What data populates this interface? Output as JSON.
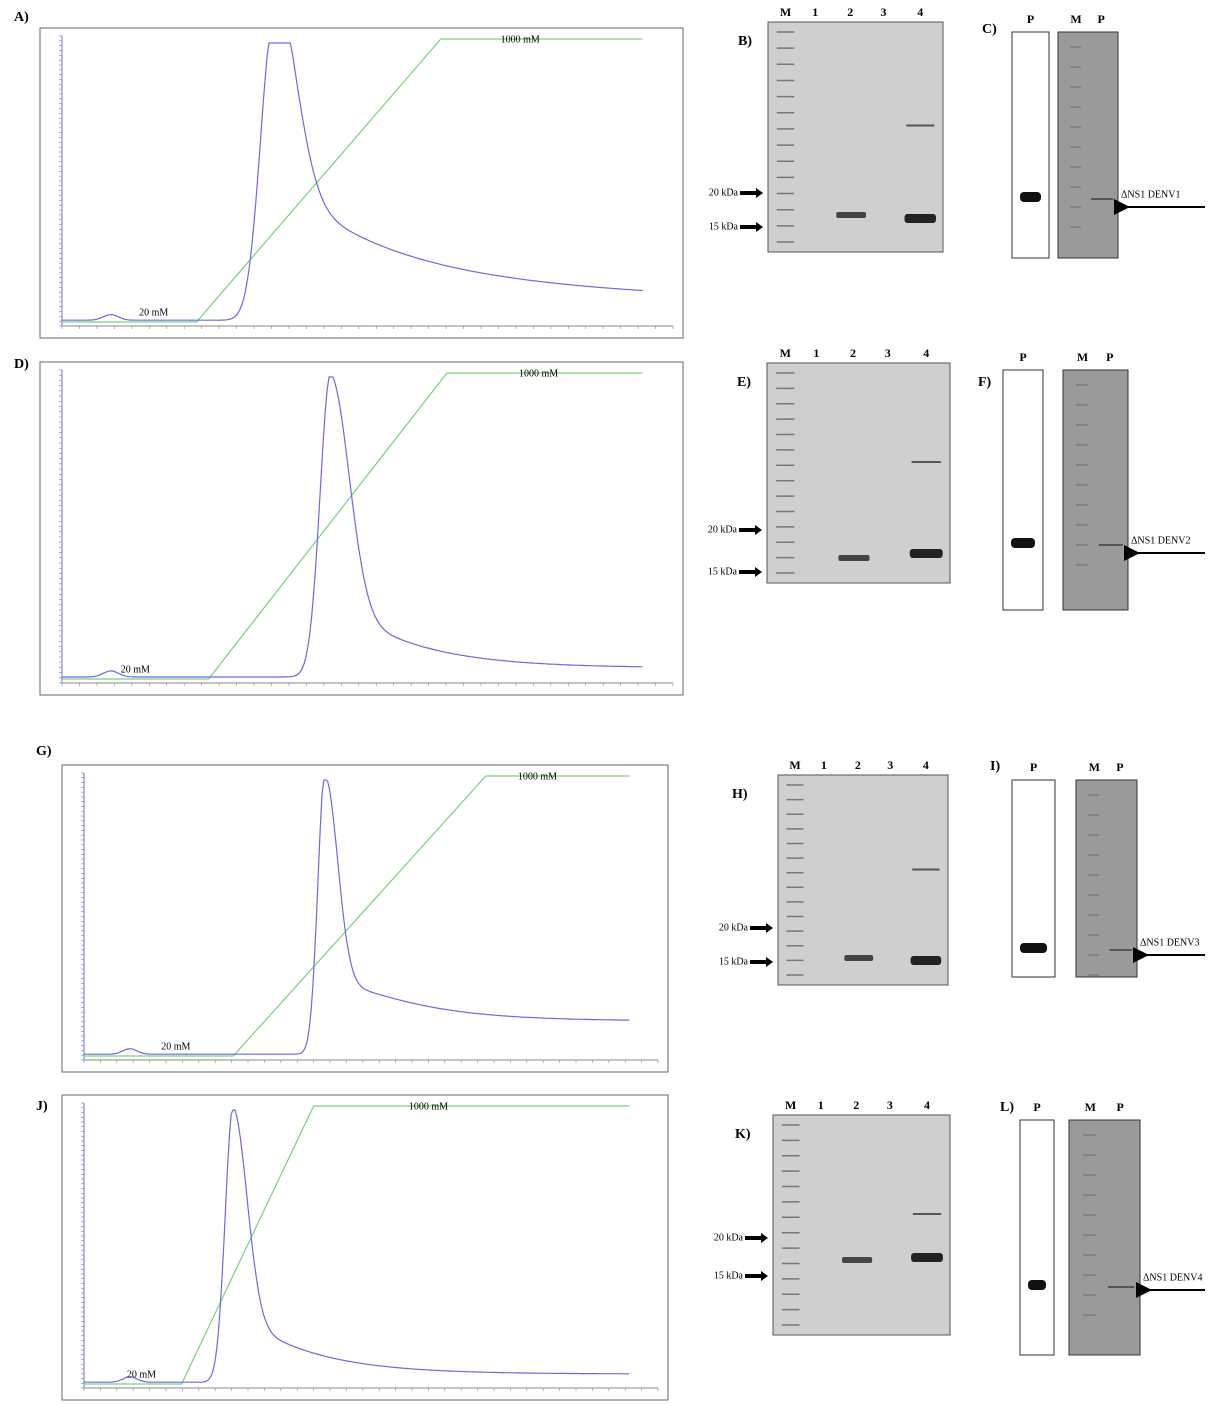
{
  "panels": [
    {
      "chrom": {
        "label": "A)",
        "high": "1000 mM",
        "low": "20 mM"
      },
      "gel": {
        "label": "B)",
        "lanes": [
          "M",
          "1",
          "2",
          "3",
          "4"
        ],
        "markers": [
          "20 kDa",
          "15 kDa"
        ]
      },
      "blot": {
        "label": "C)",
        "left_lanes": [
          "P"
        ],
        "right_lanes": [
          "M",
          "P"
        ],
        "band": "ΔNS1 DENV1"
      }
    },
    {
      "chrom": {
        "label": "D)",
        "high": "1000 mM",
        "low": "20 mM"
      },
      "gel": {
        "label": "E)",
        "lanes": [
          "M",
          "1",
          "2",
          "3",
          "4"
        ],
        "markers": [
          "20 kDa",
          "15 kDa"
        ]
      },
      "blot": {
        "label": "F)",
        "left_lanes": [
          "P"
        ],
        "right_lanes": [
          "M",
          "P"
        ],
        "band": "ΔNS1 DENV2"
      }
    },
    {
      "chrom": {
        "label": "G)",
        "high": "1000 mM",
        "low": "20 mM"
      },
      "gel": {
        "label": "H)",
        "lanes": [
          "M",
          "1",
          "2",
          "3",
          "4"
        ],
        "markers": [
          "20 kDa",
          "15 kDa"
        ]
      },
      "blot": {
        "label": "I)",
        "left_lanes": [
          "P"
        ],
        "right_lanes": [
          "M",
          "P"
        ],
        "band": "ΔNS1 DENV3"
      }
    },
    {
      "chrom": {
        "label": "J)",
        "high": "1000 mM",
        "low": "20 mM"
      },
      "gel": {
        "label": "K)",
        "lanes": [
          "M",
          "1",
          "2",
          "3",
          "4"
        ],
        "markers": [
          "20 kDa",
          "15 kDa"
        ]
      },
      "blot": {
        "label": "L)",
        "left_lanes": [
          "P"
        ],
        "right_lanes": [
          "M",
          "P"
        ],
        "band": "ΔNS1 DENV4"
      }
    }
  ]
}
